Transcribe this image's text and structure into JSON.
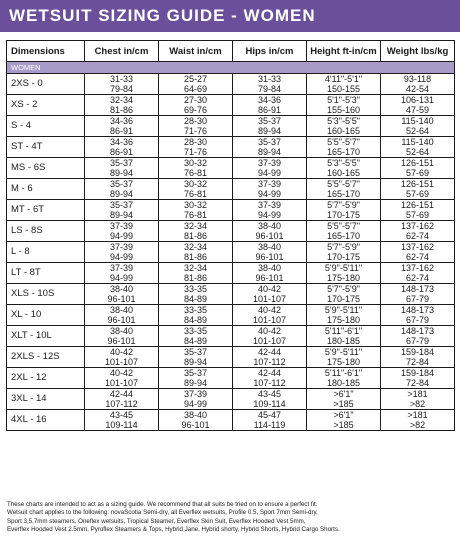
{
  "title": "WETSUIT SIZING GUIDE - WOMEN",
  "section_label": "WOMEN",
  "columns": [
    "Dimensions",
    "Chest in/cm",
    "Waist in/cm",
    "Hips in/cm",
    "Height ft-in/cm",
    "Weight lbs/kg"
  ],
  "rows": [
    {
      "size": "2XS - 0",
      "chest": [
        "31-33",
        "79-84"
      ],
      "waist": [
        "25-27",
        "64-69"
      ],
      "hips": [
        "31-33",
        "79-84"
      ],
      "height": [
        "4'11\"-5'1\"",
        "150-155"
      ],
      "weight": [
        "93-118",
        "42-54"
      ]
    },
    {
      "size": "XS - 2",
      "chest": [
        "32-34",
        "81-86"
      ],
      "waist": [
        "27-30",
        "69-76"
      ],
      "hips": [
        "34-36",
        "86-91"
      ],
      "height": [
        "5'1\"-5'3\"",
        "155-160"
      ],
      "weight": [
        "106-131",
        "47-59"
      ]
    },
    {
      "size": "S - 4",
      "chest": [
        "34-36",
        "86-91"
      ],
      "waist": [
        "28-30",
        "71-76"
      ],
      "hips": [
        "35-37",
        "89-94"
      ],
      "height": [
        "5'3\"-5'5\"",
        "160-165"
      ],
      "weight": [
        "115-140",
        "52-64"
      ]
    },
    {
      "size": "ST - 4T",
      "chest": [
        "34-36",
        "86-91"
      ],
      "waist": [
        "28-30",
        "71-76"
      ],
      "hips": [
        "35-37",
        "89-94"
      ],
      "height": [
        "5'5\"-5'7\"",
        "165-170"
      ],
      "weight": [
        "115-140",
        "52-64"
      ]
    },
    {
      "size": "MS - 6S",
      "chest": [
        "35-37",
        "89-94"
      ],
      "waist": [
        "30-32",
        "76-81"
      ],
      "hips": [
        "37-39",
        "94-99"
      ],
      "height": [
        "5'3\"-5'5\"",
        "160-165"
      ],
      "weight": [
        "126-151",
        "57-69"
      ]
    },
    {
      "size": "M - 6",
      "chest": [
        "35-37",
        "89-94"
      ],
      "waist": [
        "30-32",
        "76-81"
      ],
      "hips": [
        "37-39",
        "94-99"
      ],
      "height": [
        "5'5\"-5'7\"",
        "165-170"
      ],
      "weight": [
        "126-151",
        "57-69"
      ]
    },
    {
      "size": "MT - 6T",
      "chest": [
        "35-37",
        "89-94"
      ],
      "waist": [
        "30-32",
        "76-81"
      ],
      "hips": [
        "37-39",
        "94-99"
      ],
      "height": [
        "5'7\"-5'9\"",
        "170-175"
      ],
      "weight": [
        "126-151",
        "57-69"
      ]
    },
    {
      "size": "LS - 8S",
      "chest": [
        "37-39",
        "94-99"
      ],
      "waist": [
        "32-34",
        "81-86"
      ],
      "hips": [
        "38-40",
        "96-101"
      ],
      "height": [
        "5'5\"-5'7\"",
        "165-170"
      ],
      "weight": [
        "137-162",
        "62-74"
      ]
    },
    {
      "size": "L - 8",
      "chest": [
        "37-39",
        "94-99"
      ],
      "waist": [
        "32-34",
        "81-86"
      ],
      "hips": [
        "38-40",
        "96-101"
      ],
      "height": [
        "5'7\"-5'9\"",
        "170-175"
      ],
      "weight": [
        "137-162",
        "62-74"
      ]
    },
    {
      "size": "LT - 8T",
      "chest": [
        "37-39",
        "94-99"
      ],
      "waist": [
        "32-34",
        "81-86"
      ],
      "hips": [
        "38-40",
        "96-101"
      ],
      "height": [
        "5'9\"-5'11\"",
        "175-180"
      ],
      "weight": [
        "137-162",
        "62-74"
      ]
    },
    {
      "size": "XLS - 10S",
      "chest": [
        "38-40",
        "96-101"
      ],
      "waist": [
        "33-35",
        "84-89"
      ],
      "hips": [
        "40-42",
        "101-107"
      ],
      "height": [
        "5'7\"-5'9\"",
        "170-175"
      ],
      "weight": [
        "148-173",
        "67-79"
      ]
    },
    {
      "size": "XL - 10",
      "chest": [
        "38-40",
        "96-101"
      ],
      "waist": [
        "33-35",
        "84-89"
      ],
      "hips": [
        "40-42",
        "101-107"
      ],
      "height": [
        "5'9\"-5'11\"",
        "175-180"
      ],
      "weight": [
        "148-173",
        "67-79"
      ]
    },
    {
      "size": "XLT - 10L",
      "chest": [
        "38-40",
        "96-101"
      ],
      "waist": [
        "33-35",
        "84-89"
      ],
      "hips": [
        "40-42",
        "101-107"
      ],
      "height": [
        "5'11\"-6'1\"",
        "180-185"
      ],
      "weight": [
        "148-173",
        "67-79"
      ]
    },
    {
      "size": "2XLS - 12S",
      "chest": [
        "40-42",
        "101-107"
      ],
      "waist": [
        "35-37",
        "89-94"
      ],
      "hips": [
        "42-44",
        "107-112"
      ],
      "height": [
        "5'9\"-5'11\"",
        "175-180"
      ],
      "weight": [
        "159-184",
        "72-84"
      ]
    },
    {
      "size": "2XL - 12",
      "chest": [
        "40-42",
        "101-107"
      ],
      "waist": [
        "35-37",
        "89-94"
      ],
      "hips": [
        "42-44",
        "107-112"
      ],
      "height": [
        "5'11\"-6'1\"",
        "180-185"
      ],
      "weight": [
        "159-184",
        "72-84"
      ]
    },
    {
      "size": "3XL - 14",
      "chest": [
        "42-44",
        "107-112"
      ],
      "waist": [
        "37-39",
        "94-99"
      ],
      "hips": [
        "43-45",
        "109-114"
      ],
      "height": [
        ">6'1\"",
        ">185"
      ],
      "weight": [
        ">181",
        ">82"
      ]
    },
    {
      "size": "4XL - 16",
      "chest": [
        "43-45",
        "109-114"
      ],
      "waist": [
        "38-40",
        "96-101"
      ],
      "hips": [
        "45-47",
        "114-119"
      ],
      "height": [
        ">6'1\"",
        ">185"
      ],
      "weight": [
        ">181",
        ">82"
      ]
    }
  ],
  "notes": [
    "These charts are intended to act as a sizing guide. We recommend that all suits be tried on to ensure a perfect fit.",
    "Wetsuit chart applies to the following: novaScotia Semi-dry, all Everflex wetsuits, Profile 0.5, Sport 7mm Semi-dry,",
    "Sport 3,5,7mm steamers, Oneflex wetsuits, Tropical Steamer, Everflex Skin Suit, Everflex Hooded Vest 5mm,",
    "Everflex Hooded Vest  2.5mm, Pyroflex Steamers & Tops, Hybrid Jane, Hybrid shorty, Hybrid Shorts, Hybrid Cargo Shorts."
  ],
  "colors": {
    "banner": "#6a4f9a",
    "section": "#a99bc7",
    "size_text": "#b5131c"
  }
}
